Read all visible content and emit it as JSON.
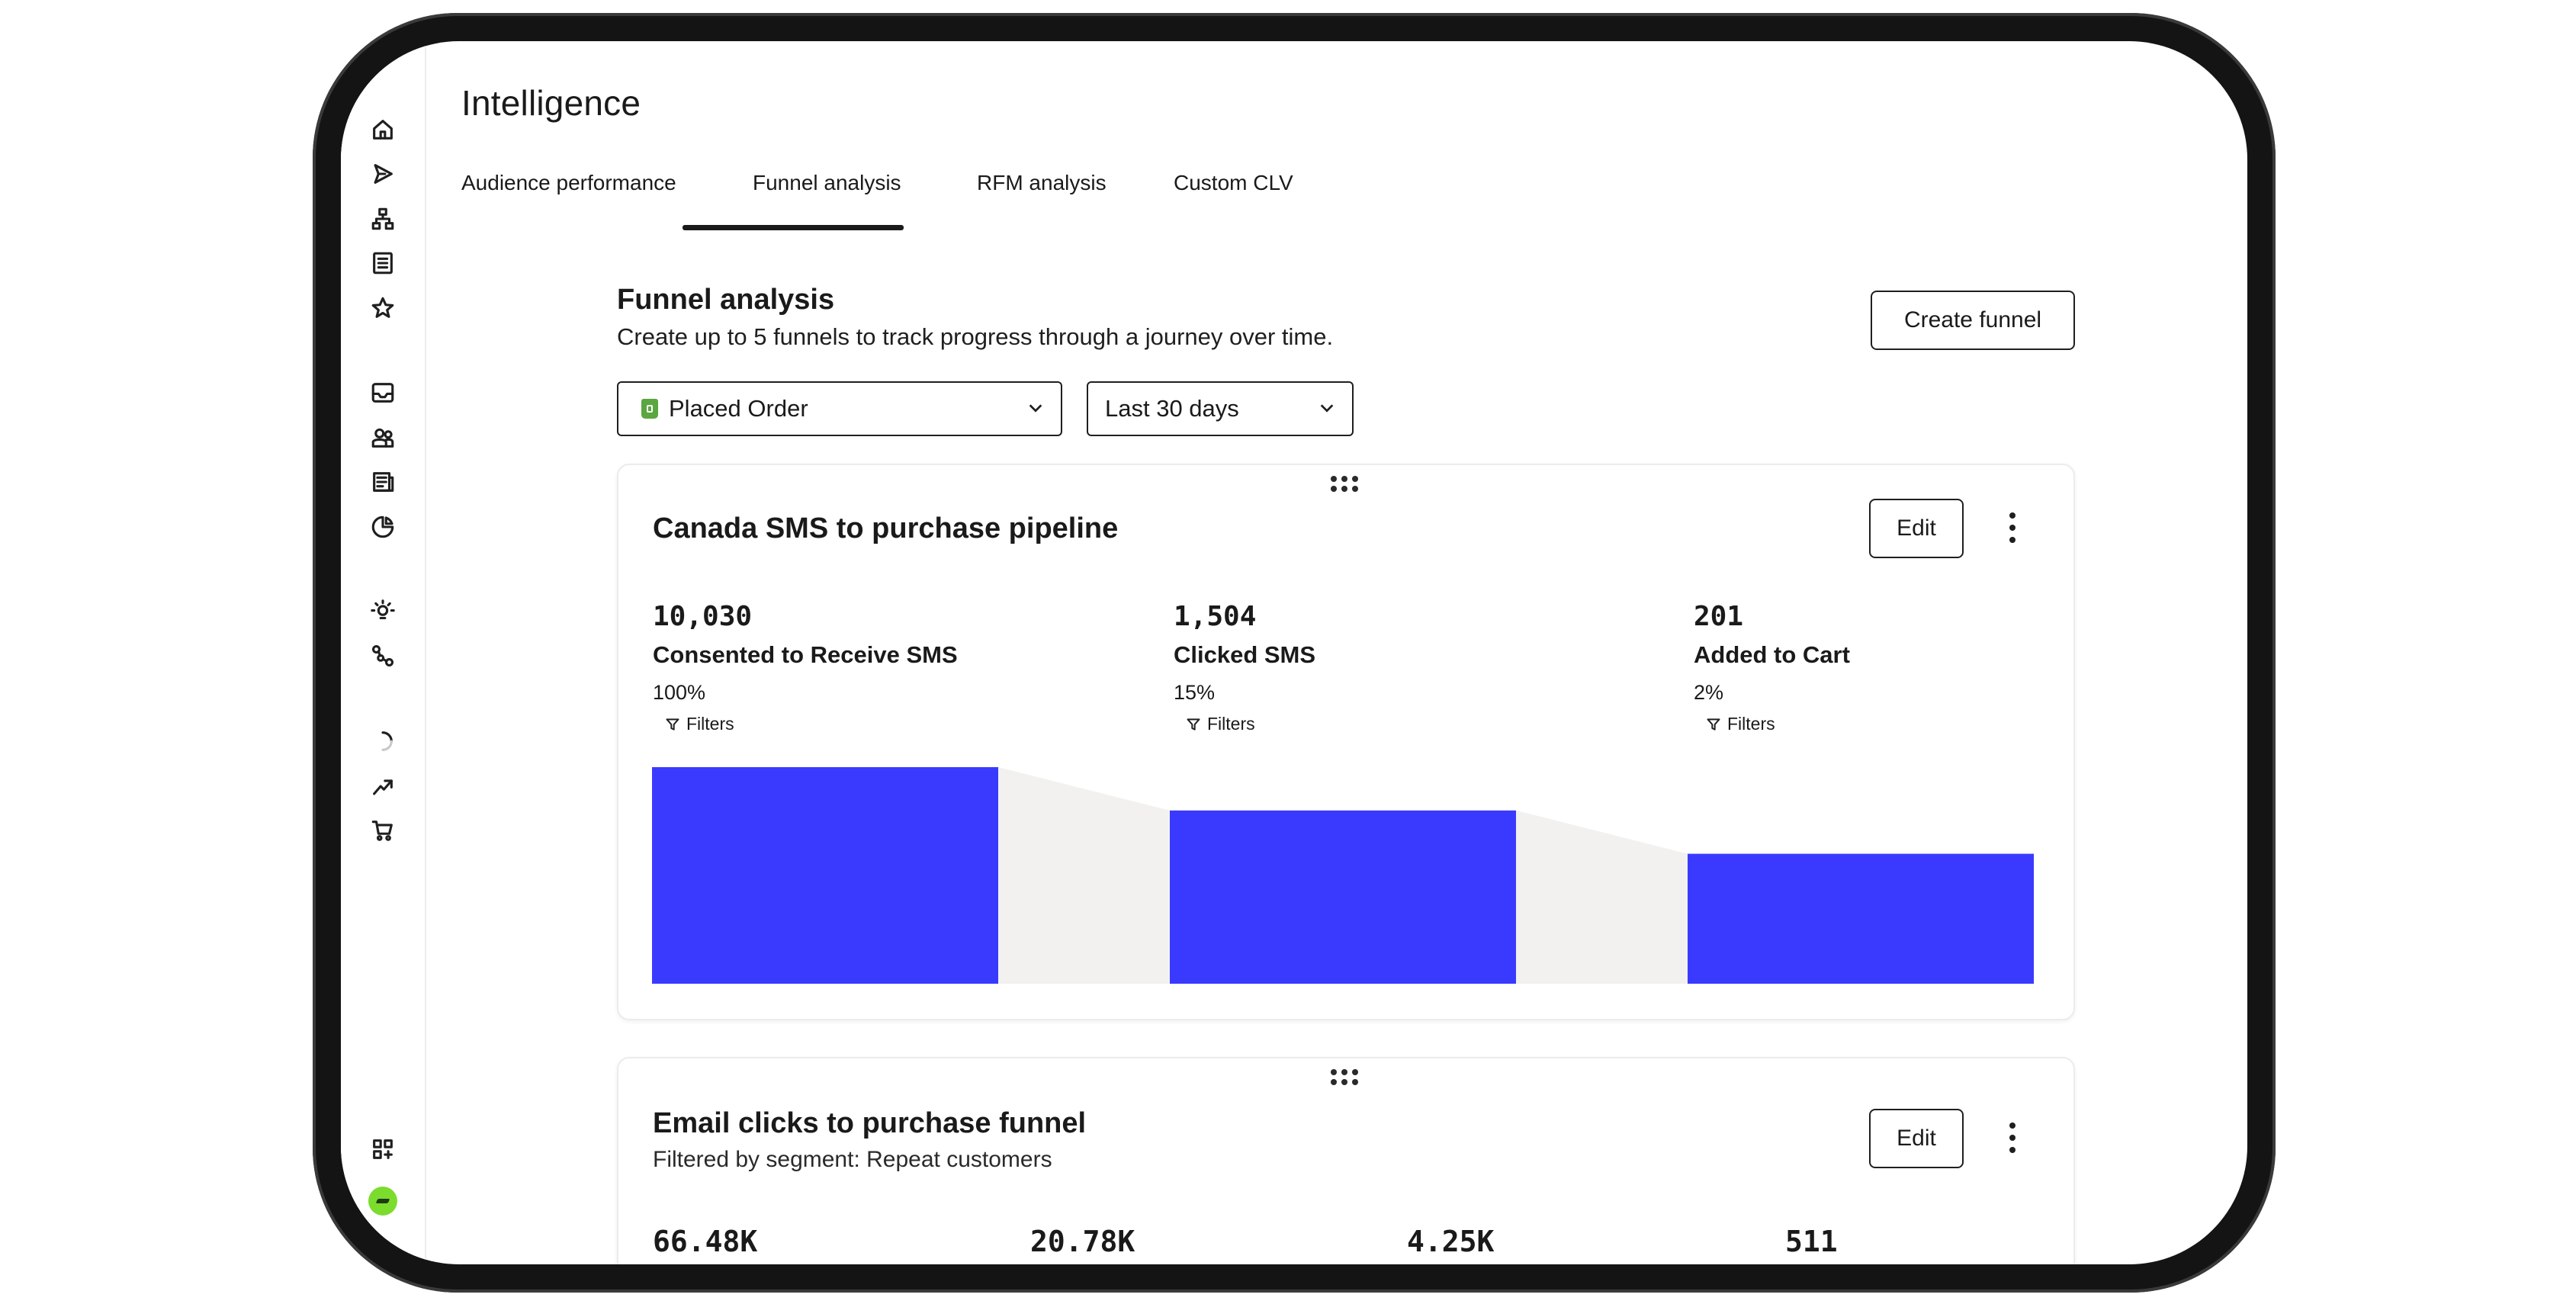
{
  "page": {
    "title": "Intelligence"
  },
  "tabs": [
    {
      "label": "Audience performance"
    },
    {
      "label": "Funnel analysis"
    },
    {
      "label": "RFM analysis"
    },
    {
      "label": "Custom CLV"
    }
  ],
  "active_tab": "Funnel analysis",
  "section": {
    "title": "Funnel analysis",
    "description": "Create up to 5 funnels to track progress through a journey over time.",
    "create_button": "Create funnel"
  },
  "filters": {
    "metric": "Placed Order",
    "timeframe": "Last 30 days"
  },
  "funnels": [
    {
      "title": "Canada SMS to purchase pipeline",
      "edit_label": "Edit",
      "stages": [
        {
          "count": "10,030",
          "name": "Consented to Receive SMS",
          "percent": "100%",
          "filters_label": "Filters"
        },
        {
          "count": "1,504",
          "name": "Clicked SMS",
          "percent": "15%",
          "filters_label": "Filters"
        },
        {
          "count": "201",
          "name": "Added to Cart",
          "percent": "2%",
          "filters_label": "Filters"
        }
      ],
      "bar_levels": [
        1.0,
        0.8,
        0.6
      ],
      "bar_color": "#3a3aff",
      "connector_color": "#f2f1ef"
    },
    {
      "title": "Email clicks to purchase funnel",
      "subtitle": "Filtered by segment: Repeat customers",
      "edit_label": "Edit",
      "stages": [
        {
          "count": "66.48K"
        },
        {
          "count": "20.78K"
        },
        {
          "count": "4.25K"
        },
        {
          "count": "511"
        }
      ]
    }
  ],
  "sidebar": {
    "icons": [
      "home-icon",
      "send-icon",
      "flows-icon",
      "list-icon",
      "star-icon",
      "inbox-icon",
      "audience-icon",
      "content-icon",
      "analytics-icon",
      "ideas-icon",
      "integrations-icon",
      "loading-icon",
      "trending-icon",
      "cart-icon",
      "apps-icon"
    ]
  }
}
